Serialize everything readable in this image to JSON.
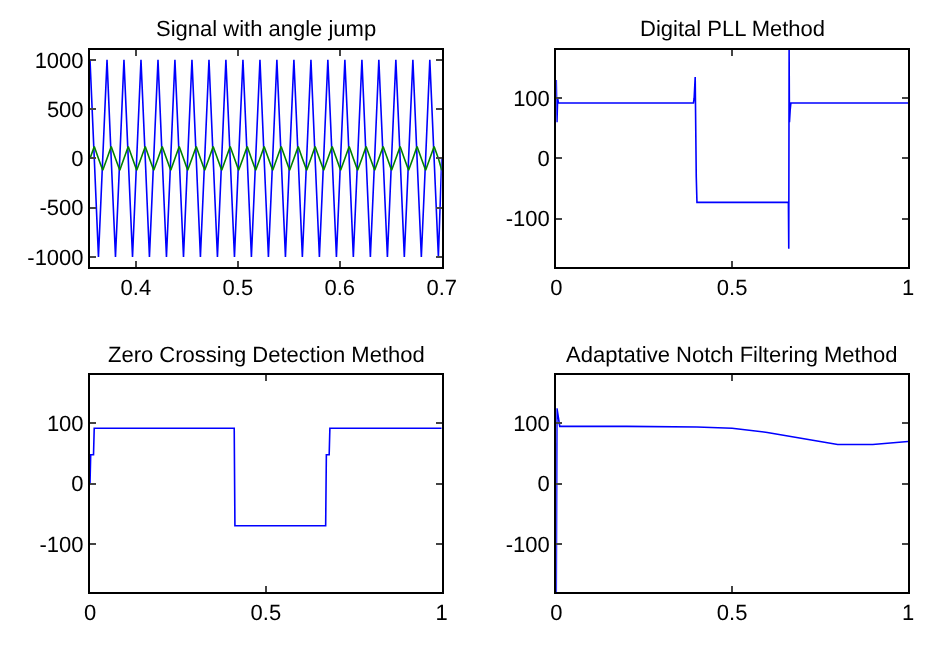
{
  "chart_data": [
    {
      "type": "line",
      "title": "Signal with angle jump",
      "xlim": [
        0.355,
        0.7
      ],
      "xticks": [
        0.4,
        0.5,
        0.6,
        0.7
      ],
      "ylim": [
        -1100,
        1100
      ],
      "yticks": [
        -1000,
        -500,
        0,
        500,
        1000
      ],
      "x": [
        0.355,
        0.3592,
        0.3633,
        0.3675,
        0.3717,
        0.3758,
        0.38,
        0.3842,
        0.3883,
        0.3925,
        0.3967,
        0.4008,
        0.405,
        0.4092,
        0.4133,
        0.4175,
        0.4217,
        0.4258,
        0.43,
        0.4342,
        0.4383,
        0.4425,
        0.4467,
        0.4508,
        0.455,
        0.4592,
        0.4633,
        0.4675,
        0.4717,
        0.4758,
        0.48,
        0.4842,
        0.4883,
        0.4925,
        0.4967,
        0.5008,
        0.505,
        0.5092,
        0.5133,
        0.5175,
        0.5217,
        0.5258,
        0.53,
        0.5342,
        0.5383,
        0.5425,
        0.5467,
        0.5508,
        0.555,
        0.5592,
        0.5633,
        0.5675,
        0.5717,
        0.5758,
        0.58,
        0.5842,
        0.5883,
        0.5925,
        0.5967,
        0.6008,
        0.605,
        0.6092,
        0.6133,
        0.6175,
        0.6217,
        0.6258,
        0.63,
        0.6342,
        0.6383,
        0.6425,
        0.6467,
        0.6508,
        0.655,
        0.6592,
        0.6633,
        0.6675,
        0.6717,
        0.6758,
        0.68,
        0.6842,
        0.6883,
        0.6925,
        0.6967,
        0.7
      ],
      "series": [
        {
          "color": "#0000ff",
          "values": [
            1000,
            0,
            -1000,
            0,
            1000,
            0,
            -1000,
            0,
            1000,
            0,
            -1000,
            0,
            1000,
            0,
            -1000,
            0,
            1000,
            0,
            -1000,
            0,
            1000,
            0,
            -1000,
            0,
            1000,
            0,
            -1000,
            0,
            1000,
            0,
            -1000,
            0,
            1000,
            0,
            -1000,
            0,
            1000,
            0,
            -1000,
            0,
            1000,
            0,
            -1000,
            0,
            1000,
            0,
            -1000,
            0,
            1000,
            0,
            -1000,
            0,
            1000,
            0,
            -1000,
            0,
            1000,
            0,
            -1000,
            0,
            1000,
            0,
            -1000,
            0,
            1000,
            0,
            -1000,
            0,
            1000,
            0,
            -1000,
            0,
            1000,
            0,
            -1000,
            0,
            1000,
            0,
            -1000,
            0,
            1000,
            0,
            -1000,
            0
          ]
        },
        {
          "color": "#008000",
          "values": [
            0,
            120,
            0,
            -120,
            0,
            120,
            0,
            -120,
            0,
            120,
            0,
            -120,
            0,
            120,
            0,
            -120,
            0,
            120,
            0,
            -120,
            0,
            120,
            0,
            -120,
            0,
            120,
            0,
            -120,
            0,
            120,
            0,
            -120,
            0,
            120,
            0,
            -120,
            0,
            120,
            0,
            -120,
            0,
            120,
            0,
            -120,
            0,
            120,
            0,
            -120,
            0,
            120,
            0,
            -120,
            0,
            120,
            0,
            -120,
            0,
            120,
            0,
            -120,
            0,
            120,
            0,
            -120,
            0,
            120,
            0,
            -120,
            0,
            120,
            0,
            -120,
            0,
            120,
            0,
            -120,
            0,
            120,
            0,
            -120,
            0,
            120,
            0,
            -120
          ]
        }
      ]
    },
    {
      "type": "line",
      "title": "Digital PLL Method",
      "xlim": [
        0,
        1
      ],
      "xticks": [
        0,
        0.5,
        1
      ],
      "ylim": [
        -180,
        180
      ],
      "yticks": [
        -100,
        0,
        100
      ],
      "x": [
        0,
        0.002,
        0.004,
        0.006,
        0.39,
        0.392,
        0.395,
        0.398,
        0.4,
        0.66,
        0.661,
        0.662,
        0.663,
        0.665,
        0.667,
        1
      ],
      "series": [
        {
          "color": "#0000ff",
          "values": [
            130,
            60,
            100,
            92,
            92,
            100,
            135,
            -30,
            -73,
            -73,
            -150,
            180,
            60,
            80,
            92,
            92
          ]
        }
      ]
    },
    {
      "type": "line",
      "title": "Zero Crossing Detection Method",
      "xlim": [
        0,
        1
      ],
      "xticks": [
        0,
        0.5,
        1
      ],
      "ylim": [
        -180,
        180
      ],
      "yticks": [
        -100,
        0,
        100
      ],
      "x": [
        0,
        0.002,
        0.01,
        0.012,
        0.02,
        0.41,
        0.412,
        0.67,
        0.672,
        0.68,
        0.682,
        1
      ],
      "series": [
        {
          "color": "#0000ff",
          "values": [
            0,
            48,
            48,
            92,
            92,
            92,
            -70,
            -70,
            48,
            48,
            92,
            92
          ]
        }
      ]
    },
    {
      "type": "line",
      "title": "Adaptative Notch Filtering Method",
      "xlim": [
        0,
        1
      ],
      "xticks": [
        0,
        0.5,
        1
      ],
      "ylim": [
        -180,
        180
      ],
      "yticks": [
        -100,
        0,
        100
      ],
      "x": [
        0,
        0.002,
        0.01,
        0.2,
        0.4,
        0.5,
        0.6,
        0.7,
        0.8,
        0.9,
        1
      ],
      "series": [
        {
          "color": "#0000ff",
          "values": [
            -180,
            125,
            95,
            95,
            94,
            92,
            85,
            75,
            65,
            65,
            70
          ]
        }
      ]
    }
  ]
}
